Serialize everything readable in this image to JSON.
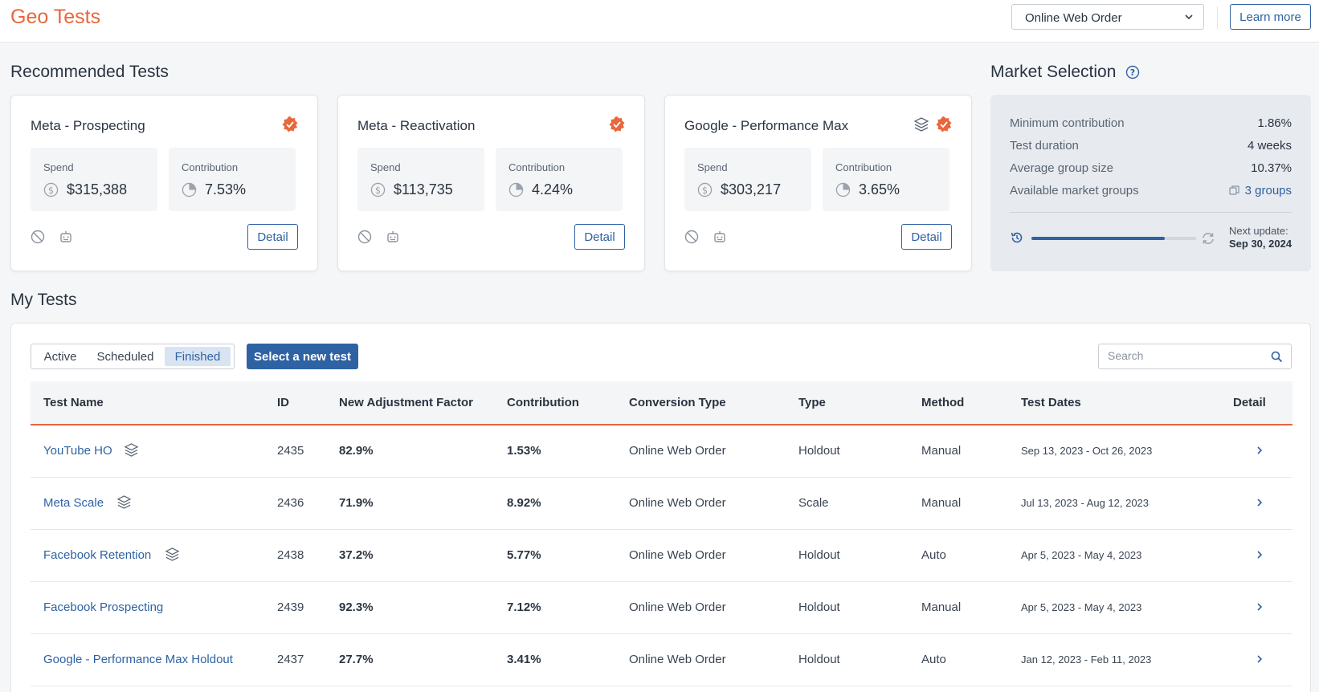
{
  "header": {
    "title": "Geo Tests",
    "conversion_dropdown": "Online Web Order",
    "learn_more": "Learn more"
  },
  "recommended": {
    "title": "Recommended Tests",
    "cards": [
      {
        "name": "Meta - Prospecting",
        "spend_label": "Spend",
        "spend": "$315,388",
        "contribution_label": "Contribution",
        "contribution": "7.53%",
        "detail": "Detail"
      },
      {
        "name": "Meta - Reactivation",
        "spend_label": "Spend",
        "spend": "$113,735",
        "contribution_label": "Contribution",
        "contribution": "4.24%",
        "detail": "Detail"
      },
      {
        "name": "Google - Performance Max",
        "spend_label": "Spend",
        "spend": "$303,217",
        "contribution_label": "Contribution",
        "contribution": "3.65%",
        "detail": "Detail"
      }
    ]
  },
  "market": {
    "title": "Market Selection",
    "rows": [
      {
        "label": "Minimum contribution",
        "value": "1.86%"
      },
      {
        "label": "Test duration",
        "value": "4 weeks"
      },
      {
        "label": "Average group size",
        "value": "10.37%"
      },
      {
        "label": "Available market groups",
        "value": "3 groups"
      }
    ],
    "progress": 0.81,
    "next_update_label": "Next update:",
    "next_update_date": "Sep 30, 2024"
  },
  "my_tests": {
    "title": "My Tests",
    "tabs": [
      "Active",
      "Scheduled",
      "Finished"
    ],
    "active_tab": "Finished",
    "new_test_button": "Select a new test",
    "search_placeholder": "Search",
    "columns": [
      "Test Name",
      "ID",
      "New Adjustment Factor",
      "Contribution",
      "Conversion Type",
      "Type",
      "Method",
      "Test Dates",
      "Detail"
    ],
    "rows": [
      {
        "name": "YouTube HO",
        "id": "2435",
        "factor": "82.9%",
        "contribution": "1.53%",
        "conversion": "Online Web Order",
        "type": "Holdout",
        "method": "Manual",
        "dates": "Sep 13, 2023 - Oct 26, 2023"
      },
      {
        "name": "Meta Scale",
        "id": "2436",
        "factor": "71.9%",
        "contribution": "8.92%",
        "conversion": "Online Web Order",
        "type": "Scale",
        "method": "Manual",
        "dates": "Jul 13, 2023 - Aug 12, 2023"
      },
      {
        "name": "Facebook Retention",
        "id": "2438",
        "factor": "37.2%",
        "contribution": "5.77%",
        "conversion": "Online Web Order",
        "type": "Holdout",
        "method": "Auto",
        "dates": "Apr 5, 2023 - May 4, 2023"
      },
      {
        "name": "Facebook Prospecting",
        "id": "2439",
        "factor": "92.3%",
        "contribution": "7.12%",
        "conversion": "Online Web Order",
        "type": "Holdout",
        "method": "Manual",
        "dates": "Apr 5, 2023 - May 4, 2023"
      },
      {
        "name": "Google - Performance Max Holdout",
        "id": "2437",
        "factor": "27.7%",
        "contribution": "3.41%",
        "conversion": "Online Web Order",
        "type": "Holdout",
        "method": "Auto",
        "dates": "Jan 12, 2023 - Feb 11, 2023"
      }
    ]
  },
  "colors": {
    "brand_orange": "#e8673c",
    "primary_blue": "#2f62a3",
    "panel_gray": "#e7eaee"
  }
}
